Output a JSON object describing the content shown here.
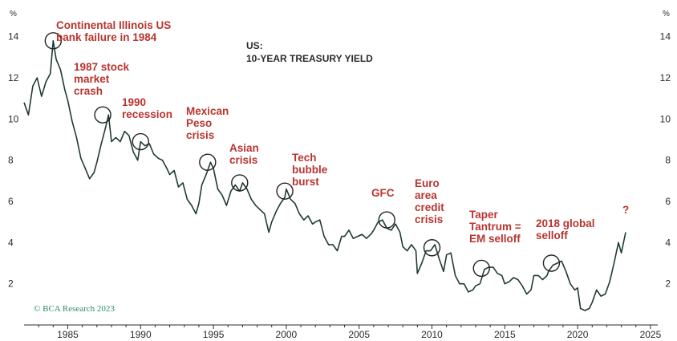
{
  "chart_data": {
    "type": "line",
    "title": "US:",
    "subtitle": "10-YEAR TREASURY YIELD",
    "y_unit_label": "%",
    "xlim": [
      1982,
      2025.5
    ],
    "ylim": [
      0,
      15
    ],
    "x_ticks": [
      1985,
      1990,
      1995,
      2000,
      2005,
      2010,
      2015,
      2020,
      2025
    ],
    "y_ticks": [
      2,
      4,
      6,
      8,
      10,
      12,
      14
    ],
    "grid": false,
    "credit": "© BCA Research 2023",
    "series": [
      {
        "color": "#1f3b35",
        "x": [
          1982.0,
          1982.3,
          1982.6,
          1982.9,
          1983.2,
          1983.5,
          1983.8,
          1984.0,
          1984.2,
          1984.5,
          1984.8,
          1985.0,
          1985.3,
          1985.6,
          1985.9,
          1986.2,
          1986.5,
          1986.8,
          1987.0,
          1987.3,
          1987.6,
          1987.8,
          1988.0,
          1988.3,
          1988.6,
          1988.9,
          1989.2,
          1989.5,
          1989.8,
          1990.0,
          1990.3,
          1990.6,
          1990.9,
          1991.2,
          1991.5,
          1991.8,
          1992.0,
          1992.3,
          1992.6,
          1992.9,
          1993.2,
          1993.5,
          1993.8,
          1994.0,
          1994.2,
          1994.5,
          1994.8,
          1995.0,
          1995.3,
          1995.6,
          1995.9,
          1996.2,
          1996.5,
          1996.8,
          1997.0,
          1997.3,
          1997.6,
          1997.9,
          1998.2,
          1998.5,
          1998.8,
          1999.0,
          1999.3,
          1999.6,
          1999.9,
          2000.0,
          2000.3,
          2000.6,
          2000.9,
          2001.2,
          2001.5,
          2001.8,
          2002.0,
          2002.3,
          2002.6,
          2002.9,
          2003.2,
          2003.5,
          2003.8,
          2004.0,
          2004.3,
          2004.6,
          2004.9,
          2005.2,
          2005.5,
          2005.8,
          2006.0,
          2006.3,
          2006.6,
          2006.9,
          2007.2,
          2007.5,
          2007.8,
          2008.0,
          2008.3,
          2008.6,
          2008.9,
          2009.0,
          2009.3,
          2009.6,
          2009.9,
          2010.2,
          2010.5,
          2010.8,
          2011.0,
          2011.3,
          2011.6,
          2011.9,
          2012.2,
          2012.5,
          2012.8,
          2013.0,
          2013.3,
          2013.6,
          2013.9,
          2014.2,
          2014.5,
          2014.8,
          2015.0,
          2015.3,
          2015.6,
          2015.9,
          2016.2,
          2016.5,
          2016.8,
          2017.0,
          2017.3,
          2017.6,
          2017.9,
          2018.0,
          2018.3,
          2018.6,
          2018.9,
          2019.2,
          2019.5,
          2019.8,
          2020.0,
          2020.2,
          2020.5,
          2020.8,
          2021.0,
          2021.3,
          2021.6,
          2021.9,
          2022.2,
          2022.5,
          2022.8,
          2023.0,
          2023.3
        ],
        "y": [
          10.8,
          10.2,
          11.6,
          12.0,
          11.1,
          11.8,
          12.2,
          13.8,
          12.9,
          12.4,
          11.4,
          10.9,
          9.9,
          9.1,
          8.1,
          7.6,
          7.1,
          7.4,
          7.9,
          8.8,
          9.6,
          10.2,
          8.9,
          9.1,
          8.9,
          9.4,
          9.2,
          8.4,
          8.0,
          8.9,
          8.7,
          8.8,
          8.3,
          8.1,
          8.0,
          7.6,
          7.3,
          7.5,
          6.7,
          6.9,
          6.1,
          5.8,
          5.4,
          5.9,
          6.8,
          7.3,
          7.9,
          7.6,
          6.6,
          6.3,
          5.8,
          6.5,
          6.8,
          6.5,
          6.9,
          6.6,
          6.1,
          5.8,
          5.6,
          5.4,
          4.5,
          5.0,
          5.5,
          5.9,
          6.2,
          6.6,
          6.1,
          5.9,
          5.4,
          5.1,
          5.3,
          4.9,
          5.0,
          5.1,
          4.3,
          3.9,
          3.9,
          3.6,
          4.3,
          4.3,
          4.6,
          4.2,
          4.3,
          4.4,
          4.2,
          4.4,
          4.6,
          5.0,
          5.1,
          4.7,
          4.6,
          4.9,
          4.5,
          3.8,
          3.6,
          3.9,
          3.6,
          2.5,
          3.0,
          3.6,
          3.6,
          3.9,
          3.2,
          2.6,
          3.4,
          3.5,
          2.4,
          2.0,
          2.0,
          1.6,
          1.7,
          1.9,
          2.0,
          2.7,
          2.8,
          2.8,
          2.5,
          2.4,
          2.0,
          2.1,
          2.3,
          2.2,
          1.9,
          1.5,
          1.7,
          2.4,
          2.4,
          2.2,
          2.4,
          2.6,
          2.9,
          3.0,
          3.1,
          2.6,
          2.0,
          1.7,
          1.8,
          0.8,
          0.7,
          0.8,
          1.1,
          1.7,
          1.4,
          1.5,
          2.1,
          3.0,
          4.0,
          3.5,
          4.5
        ]
      }
    ],
    "annotations": [
      {
        "lines": [
          "Continental Illinois US",
          "bank failure in 1984"
        ],
        "x": 1984.0,
        "y": 13.8
      },
      {
        "lines": [
          "1987 stock",
          "market",
          "crash"
        ],
        "x": 1987.4,
        "y": 10.2
      },
      {
        "lines": [
          "1990",
          "recession"
        ],
        "x": 1990.0,
        "y": 8.9
      },
      {
        "lines": [
          "Mexican",
          "Peso",
          "crisis"
        ],
        "x": 1994.6,
        "y": 7.9
      },
      {
        "lines": [
          "Asian",
          "crisis"
        ],
        "x": 1996.8,
        "y": 6.9
      },
      {
        "lines": [
          "Tech",
          "bubble",
          "burst"
        ],
        "x": 1999.9,
        "y": 6.5
      },
      {
        "lines": [
          "GFC"
        ],
        "x": 2006.9,
        "y": 5.1
      },
      {
        "lines": [
          "Euro",
          "area",
          "credit",
          "crisis"
        ],
        "x": 2010.0,
        "y": 3.75
      },
      {
        "lines": [
          "Taper",
          "Tantrum =",
          "EM selloff"
        ],
        "x": 2013.4,
        "y": 2.75
      },
      {
        "lines": [
          "2018 global",
          "selloff"
        ],
        "x": 2018.2,
        "y": 3.0
      },
      {
        "lines": [
          "?"
        ],
        "x": 2023.3,
        "y": 5.2
      }
    ]
  }
}
